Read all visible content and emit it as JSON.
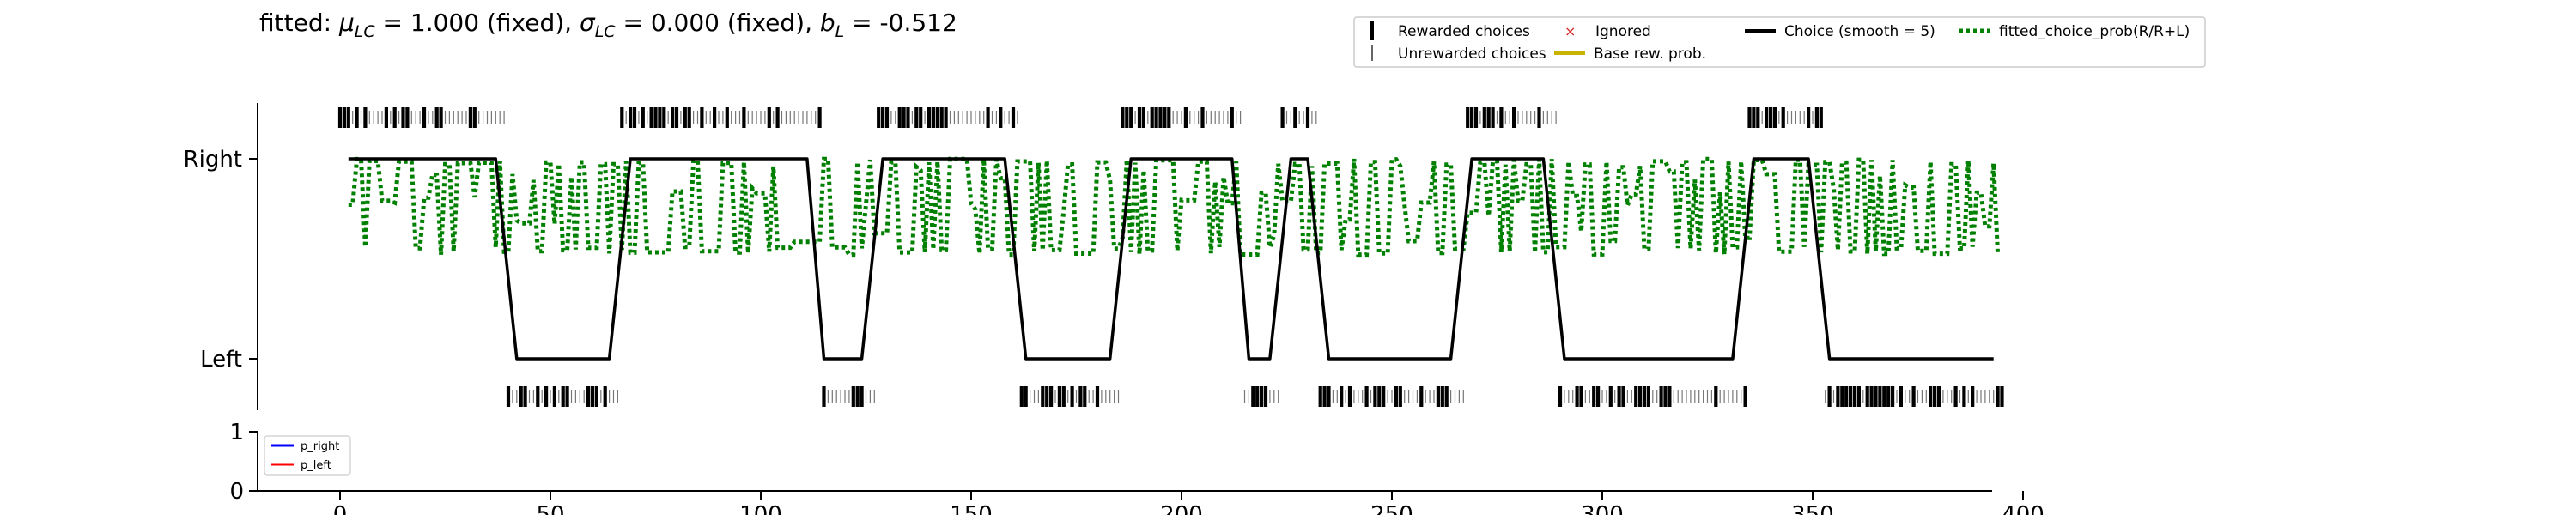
{
  "chart_data": [
    {
      "type": "line",
      "title_parts": {
        "prefix": "fitted: ",
        "mu_sym": "μ",
        "mu_sub": "LC",
        "mu_val": " = 1.000 (fixed), ",
        "sigma_sym": "σ",
        "sigma_sub": "LC",
        "sigma_val": " = 0.000 (fixed), ",
        "b_sym": "b",
        "b_sub": "L",
        "b_val": " = -0.512"
      },
      "ytick_labels": [
        "Left",
        "Right"
      ],
      "xlim": [
        -20,
        400
      ],
      "ylim": [
        -0.35,
        1.35
      ],
      "legend": {
        "placement": "top-right",
        "entries": [
          {
            "label": "Rewarded choices",
            "marker": "thick-bar",
            "color": "#000000"
          },
          {
            "label": "Unrewarded choices",
            "marker": "thin-bar",
            "color": "#000000"
          },
          {
            "label": "Ignored",
            "marker": "x",
            "color": "#d62728"
          },
          {
            "label": "Base rew. prob.",
            "marker": "line",
            "color": "#c8b400"
          },
          {
            "label": "Choice (smooth = 5)",
            "marker": "line",
            "color": "#000000"
          },
          {
            "label": "fitted_choice_prob(R/R+L)",
            "marker": "dotted",
            "color": "#008000"
          }
        ]
      },
      "choice_blocks": [
        {
          "side": "right",
          "start": 0,
          "end": 39
        },
        {
          "side": "left",
          "start": 40,
          "end": 66
        },
        {
          "side": "right",
          "start": 67,
          "end": 114
        },
        {
          "side": "left",
          "start": 115,
          "end": 127
        },
        {
          "side": "right",
          "start": 128,
          "end": 161
        },
        {
          "side": "left",
          "start": 162,
          "end": 185
        },
        {
          "side": "right",
          "start": 186,
          "end": 214
        },
        {
          "side": "left",
          "start": 215,
          "end": 223
        },
        {
          "side": "right",
          "start": 224,
          "end": 232
        },
        {
          "side": "left",
          "start": 233,
          "end": 267
        },
        {
          "side": "right",
          "start": 268,
          "end": 289
        },
        {
          "side": "left",
          "start": 290,
          "end": 334
        },
        {
          "side": "right",
          "start": 335,
          "end": 352
        },
        {
          "side": "left",
          "start": 353,
          "end": 395
        }
      ],
      "smoothed_choice": {
        "x": [
          2,
          37,
          42,
          64,
          69,
          111,
          115,
          124,
          129,
          158,
          163,
          183,
          188,
          212,
          216,
          221,
          226,
          230,
          235,
          264,
          269,
          286,
          291,
          331,
          336,
          349,
          354,
          393
        ],
        "y": [
          1,
          1,
          0,
          0,
          1,
          1,
          0,
          0,
          1,
          1,
          0,
          0,
          1,
          1,
          0,
          0,
          1,
          1,
          0,
          0,
          1,
          1,
          0,
          0,
          1,
          1,
          0,
          0
        ]
      },
      "fitted_choice_prob_range": [
        0.52,
        1.0
      ]
    },
    {
      "type": "line",
      "ytick_labels": [
        "0",
        "1"
      ],
      "xtick_labels": [
        "0",
        "50",
        "100",
        "150",
        "200",
        "250",
        "300",
        "350",
        "400"
      ],
      "xticks": [
        0,
        50,
        100,
        150,
        200,
        250,
        300,
        350,
        400
      ],
      "xlim": [
        -20,
        400
      ],
      "ylim": [
        0,
        1
      ],
      "series": [
        {
          "name": "p_right",
          "color": "#0000ff",
          "values": []
        },
        {
          "name": "p_left",
          "color": "#ff0000",
          "values": []
        }
      ],
      "legend_placement": "upper-left"
    }
  ]
}
